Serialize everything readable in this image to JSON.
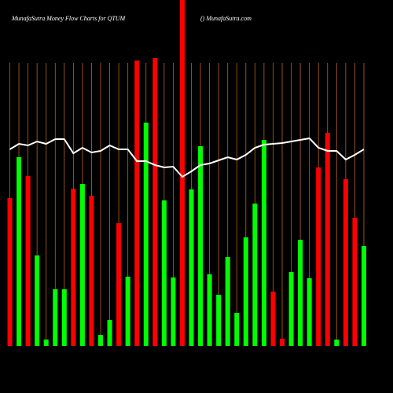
{
  "chart_data": {
    "type": "bar",
    "title": "MunafaSutra  Money Flow  Charts for QTUM",
    "subtitle": "() MunafaSutra.com",
    "categories": [
      null,
      null,
      null,
      null,
      null,
      null,
      null,
      null,
      null,
      null,
      null,
      null,
      null,
      null,
      null,
      null,
      null,
      null,
      null,
      null,
      null,
      null,
      null,
      null,
      null,
      null,
      null,
      null,
      null,
      null,
      null,
      null,
      null,
      null,
      null,
      null,
      null,
      null,
      null,
      null
    ],
    "series": [
      {
        "colors": [
          "#ff0000",
          "#00ff00",
          "#ff0000",
          "#00ff00",
          "#00ff00",
          "#00ff00",
          "#00ff00",
          "#ff0000",
          "#00ff00",
          "#ff0000",
          "#00ff00",
          "#00ff00",
          "#ff0000",
          "#00ff00",
          "#ff0000",
          "#00ff00",
          "#ff0000",
          "#00ff00",
          "#00ff00",
          "#ff0000",
          "#00ff00",
          "#00ff00",
          "#00ff00",
          "#00ff00",
          "#00ff00",
          "#00ff00",
          "#00ff00",
          "#00ff00",
          "#00ff00",
          "#ff0000",
          "#ff0000",
          "#00ff00",
          "#00ff00",
          "#00ff00",
          "#ff0000",
          "#ff0000",
          "#00ff00",
          "#ff0000",
          "#ff0000",
          "#00ff00"
        ],
        "values": [
          188,
          240,
          216,
          115,
          8,
          72,
          72,
          200,
          206,
          191,
          14,
          33,
          156,
          88,
          363,
          284,
          366,
          185,
          87,
          440,
          199,
          254,
          91,
          65,
          113,
          42,
          138,
          181,
          262,
          69,
          9,
          94,
          135,
          86,
          227,
          271,
          8,
          212,
          163,
          127
        ]
      },
      {
        "type": "line",
        "color": "#ffffff",
        "values": [
          250,
          257,
          255,
          260,
          257,
          263,
          263,
          245,
          252,
          246,
          248,
          255,
          250,
          250,
          235,
          235,
          230,
          227,
          228,
          215,
          222,
          230,
          232,
          236,
          240,
          237,
          243,
          252,
          256,
          257,
          258,
          260,
          262,
          264,
          252,
          248,
          248,
          237,
          243,
          250
        ]
      }
    ],
    "ylim": [
      0,
      440
    ],
    "grid_color": "#b8641e"
  }
}
